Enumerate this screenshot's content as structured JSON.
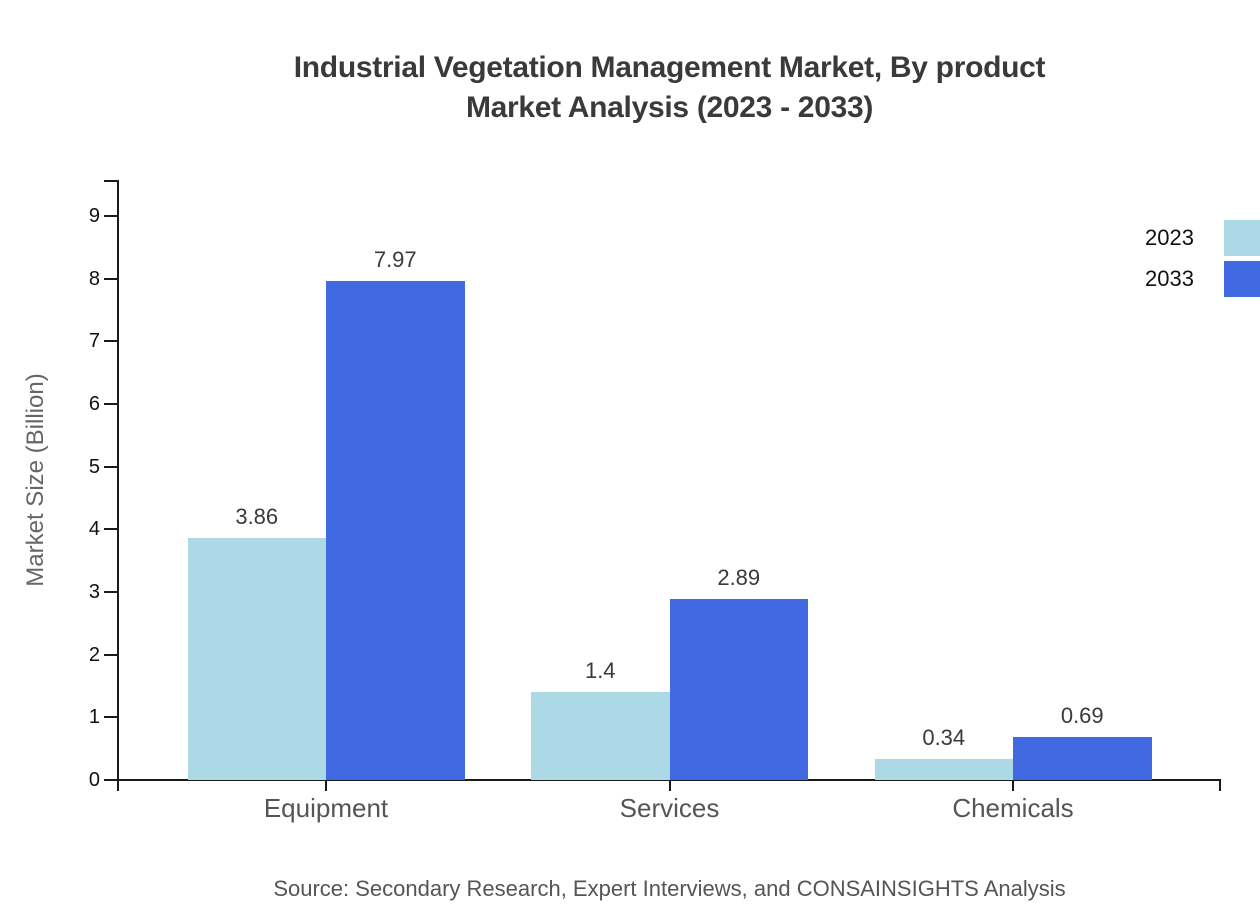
{
  "title": "Industrial Vegetation Management Market, By product\nMarket Analysis (2023 - 2033)",
  "source": "Source: Secondary Research, Expert Interviews, and CONSAINSIGHTS Analysis",
  "chart_data": {
    "type": "bar",
    "title": "Industrial Vegetation Management Market, By product Market Analysis (2023 - 2033)",
    "categories": [
      "Equipment",
      "Services",
      "Chemicals"
    ],
    "series": [
      {
        "name": "2023",
        "color": "#ADD8E6",
        "values": [
          3.86,
          1.4,
          0.34
        ],
        "value_labels": [
          "3.86",
          "1.4",
          "0.34"
        ]
      },
      {
        "name": "2033",
        "color": "#4169E1",
        "values": [
          7.97,
          2.89,
          0.69
        ],
        "value_labels": [
          "7.97",
          "2.89",
          "0.69"
        ]
      }
    ],
    "xlabel": "",
    "ylabel": "Market Size (Billion)",
    "ylim": [
      0,
      9.56
    ],
    "yticks": [
      0,
      1,
      2,
      3,
      4,
      5,
      6,
      7,
      8,
      9
    ],
    "grid": false,
    "legend_position": "top-right",
    "bar_grouping": "grouped"
  },
  "colors": {
    "series_2023": "#ADD8E6",
    "series_2033": "#4169E1",
    "axis": "#1a1a1a",
    "title_text": "#3a3a3a",
    "value_label_text": "#3a3a3a",
    "category_text": "#555555",
    "axis_title_text": "#666666",
    "source_text": "#555555",
    "background": "#ffffff"
  }
}
